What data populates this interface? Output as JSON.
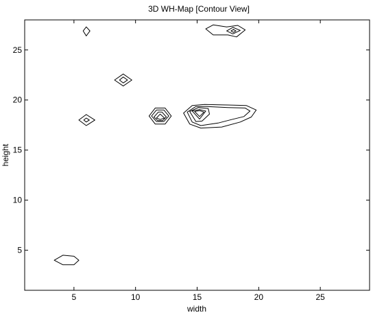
{
  "chart_data": {
    "type": "contour",
    "title": "3D WH-Map [Contour View]",
    "xlabel": "width",
    "ylabel": "height",
    "xlim": [
      1,
      29
    ],
    "ylim": [
      1,
      28
    ],
    "x_ticks": [
      5,
      10,
      15,
      20,
      25
    ],
    "y_ticks": [
      5,
      10,
      15,
      20,
      25
    ],
    "x_tick_labels": [
      "5",
      "10",
      "15",
      "20",
      "25"
    ],
    "y_tick_labels": [
      "5",
      "10",
      "15",
      "20",
      "25"
    ],
    "grid": false,
    "line_color": "#000000",
    "contours": [
      {
        "name": "peak-4-4",
        "paths": [
          [
            [
              3.4,
              4
            ],
            [
              4.1,
              4.5
            ],
            [
              5.0,
              4.4
            ],
            [
              5.4,
              4
            ],
            [
              5.0,
              3.55
            ],
            [
              4.1,
              3.55
            ],
            [
              3.4,
              4
            ]
          ]
        ]
      },
      {
        "name": "peak-6-18",
        "paths": [
          [
            [
              5.4,
              18
            ],
            [
              6,
              18.55
            ],
            [
              6.7,
              18
            ],
            [
              6,
              17.45
            ],
            [
              5.4,
              18
            ]
          ],
          [
            [
              5.8,
              18
            ],
            [
              6,
              18.2
            ],
            [
              6.25,
              18
            ],
            [
              6,
              17.8
            ],
            [
              5.8,
              18
            ]
          ]
        ]
      },
      {
        "name": "peak-6-27",
        "paths": [
          [
            [
              6,
              27.3
            ],
            [
              6.3,
              26.9
            ],
            [
              6,
              26.4
            ],
            [
              5.75,
              26.9
            ],
            [
              6,
              27.3
            ]
          ]
        ]
      },
      {
        "name": "peak-9-22",
        "paths": [
          [
            [
              8.3,
              22
            ],
            [
              9,
              22.6
            ],
            [
              9.7,
              22
            ],
            [
              9,
              21.4
            ],
            [
              8.3,
              22
            ]
          ],
          [
            [
              8.7,
              22
            ],
            [
              9,
              22.3
            ],
            [
              9.35,
              22
            ],
            [
              9,
              21.7
            ],
            [
              8.7,
              22
            ]
          ]
        ]
      },
      {
        "name": "peak-12-18",
        "paths": [
          [
            [
              11.1,
              18.4
            ],
            [
              11.6,
              19.2
            ],
            [
              12.4,
              19.2
            ],
            [
              12.9,
              18.4
            ],
            [
              12.4,
              17.6
            ],
            [
              11.6,
              17.6
            ],
            [
              11.1,
              18.4
            ]
          ],
          [
            [
              11.3,
              18.4
            ],
            [
              11.7,
              19.0
            ],
            [
              12.3,
              19.0
            ],
            [
              12.7,
              18.4
            ],
            [
              12.3,
              17.85
            ],
            [
              11.7,
              17.85
            ],
            [
              11.3,
              18.4
            ]
          ],
          [
            [
              11.5,
              18.3
            ],
            [
              11.85,
              18.8
            ],
            [
              12.15,
              18.8
            ],
            [
              12.5,
              18.3
            ],
            [
              12.2,
              17.95
            ],
            [
              11.8,
              17.95
            ],
            [
              11.5,
              18.3
            ]
          ],
          [
            [
              11.7,
              18.2
            ],
            [
              12,
              18.6
            ],
            [
              12.35,
              18.2
            ],
            [
              12,
              18.05
            ],
            [
              11.7,
              18.2
            ]
          ]
        ]
      },
      {
        "name": "peak-15-19-ridge",
        "paths": [
          [
            [
              13.9,
              18.7
            ],
            [
              14.6,
              19.45
            ],
            [
              15.6,
              19.55
            ],
            [
              17.5,
              19.5
            ],
            [
              19.0,
              19.45
            ],
            [
              19.8,
              19.0
            ],
            [
              19.4,
              18.3
            ],
            [
              18.5,
              17.8
            ],
            [
              17,
              17.3
            ],
            [
              15.3,
              17.2
            ],
            [
              14.4,
              17.6
            ],
            [
              13.9,
              18.7
            ]
          ],
          [
            [
              14.2,
              18.8
            ],
            [
              14.9,
              19.35
            ],
            [
              15.8,
              19.35
            ],
            [
              17.5,
              19.25
            ],
            [
              18.9,
              19.2
            ],
            [
              19.3,
              18.9
            ],
            [
              18.8,
              18.35
            ],
            [
              17.8,
              18.05
            ],
            [
              16.7,
              17.7
            ],
            [
              15.3,
              17.45
            ],
            [
              14.6,
              17.8
            ],
            [
              14.2,
              18.8
            ]
          ],
          [
            [
              14.4,
              18.85
            ],
            [
              15.1,
              19.25
            ],
            [
              15.9,
              19.15
            ],
            [
              16,
              18.6
            ],
            [
              15.4,
              17.9
            ],
            [
              14.9,
              17.85
            ],
            [
              14.4,
              18.85
            ]
          ],
          [
            [
              14.6,
              18.9
            ],
            [
              15.2,
              19.05
            ],
            [
              15.7,
              18.9
            ],
            [
              15.2,
              18.1
            ],
            [
              14.6,
              18.9
            ]
          ],
          [
            [
              14.8,
              18.85
            ],
            [
              15.2,
              18.95
            ],
            [
              15.55,
              18.8
            ],
            [
              15.2,
              18.35
            ],
            [
              14.8,
              18.85
            ]
          ]
        ]
      },
      {
        "name": "peak-17-27",
        "paths": [
          [
            [
              15.7,
              27.1
            ],
            [
              16.3,
              27.5
            ],
            [
              17.4,
              27.3
            ],
            [
              18.3,
              27.45
            ],
            [
              18.9,
              27.0
            ],
            [
              18.2,
              26.3
            ],
            [
              17.5,
              26.5
            ],
            [
              16.3,
              26.5
            ],
            [
              15.7,
              27.1
            ]
          ],
          [
            [
              17.4,
              26.9
            ],
            [
              17.9,
              27.25
            ],
            [
              18.5,
              26.95
            ],
            [
              17.9,
              26.6
            ],
            [
              17.4,
              26.9
            ]
          ],
          [
            [
              17.75,
              26.9
            ],
            [
              17.95,
              27.05
            ],
            [
              18.15,
              26.9
            ],
            [
              17.95,
              26.75
            ],
            [
              17.75,
              26.9
            ]
          ]
        ]
      }
    ]
  }
}
